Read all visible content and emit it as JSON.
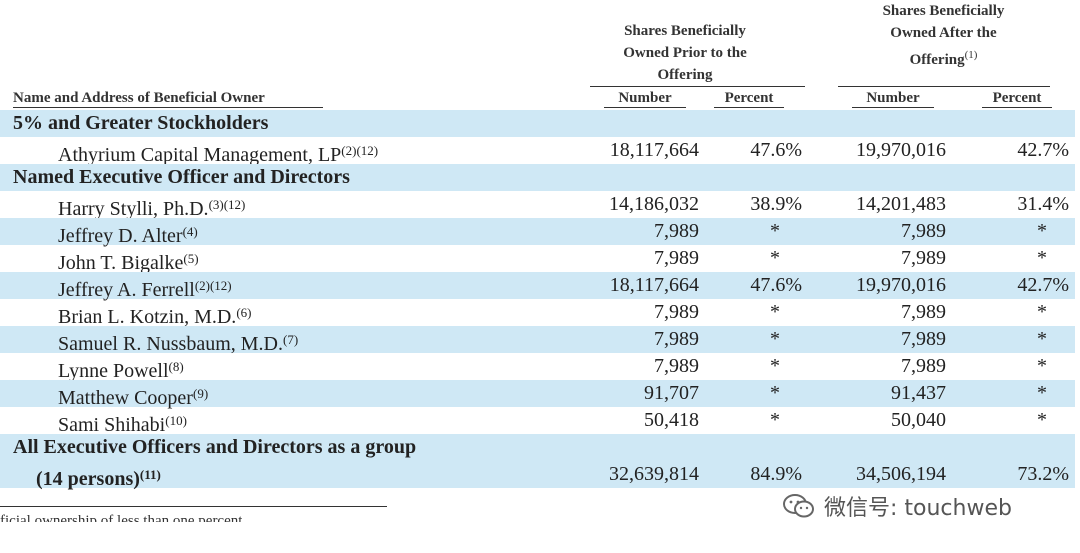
{
  "header": {
    "prior_title": "Shares Beneficially Owned Prior to the Offering",
    "after_title": "Shares Beneficially Owned After the Offering",
    "after_note": "(1)",
    "owner_col": "Name and Address of Beneficial Owner",
    "number": "Number",
    "percent": "Percent"
  },
  "rows": [
    {
      "type": "section",
      "name": "5% and Greater Stockholders",
      "shade": true
    },
    {
      "type": "data",
      "name": "Athyrium Capital Management, LP",
      "notes": "(2)(12)",
      "n1": "18,117,664",
      "p1": "47.6%",
      "n2": "19,970,016",
      "p2": "42.7%",
      "shade": false
    },
    {
      "type": "section",
      "name": "Named Executive Officer and Directors",
      "shade": true
    },
    {
      "type": "data",
      "name": "Harry Stylli, Ph.D.",
      "notes": "(3)(12)",
      "n1": "14,186,032",
      "p1": "38.9%",
      "n2": "14,201,483",
      "p2": "31.4%",
      "shade": false
    },
    {
      "type": "data",
      "name": "Jeffrey D. Alter",
      "notes": "(4)",
      "n1": "7,989",
      "p1": "*",
      "n2": "7,989",
      "p2": "*",
      "shade": true
    },
    {
      "type": "data",
      "name": "John T. Bigalke",
      "notes": "(5)",
      "n1": "7,989",
      "p1": "*",
      "n2": "7,989",
      "p2": "*",
      "shade": false
    },
    {
      "type": "data",
      "name": "Jeffrey A. Ferrell",
      "notes": "(2)(12)",
      "n1": "18,117,664",
      "p1": "47.6%",
      "n2": "19,970,016",
      "p2": "42.7%",
      "shade": true
    },
    {
      "type": "data",
      "name": "Brian L. Kotzin, M.D.",
      "notes": "(6)",
      "n1": "7,989",
      "p1": "*",
      "n2": "7,989",
      "p2": "*",
      "shade": false
    },
    {
      "type": "data",
      "name": "Samuel R. Nussbaum, M.D.",
      "notes": "(7)",
      "n1": "7,989",
      "p1": "*",
      "n2": "7,989",
      "p2": "*",
      "shade": true
    },
    {
      "type": "data",
      "name": "Lynne Powell",
      "notes": "(8)",
      "n1": "7,989",
      "p1": "*",
      "n2": "7,989",
      "p2": "*",
      "shade": false
    },
    {
      "type": "data",
      "name": "Matthew Cooper",
      "notes": "(9)",
      "n1": "91,707",
      "p1": "*",
      "n2": "91,437",
      "p2": "*",
      "shade": true
    },
    {
      "type": "data",
      "name": "Sami Shihabi",
      "notes": "(10)",
      "n1": "50,418",
      "p1": "*",
      "n2": "50,040",
      "p2": "*",
      "shade": false
    }
  ],
  "total": {
    "line1": "All Executive Officers and Directors as a group",
    "line2": "(14 persons)",
    "notes": "(11)",
    "n1": "32,639,814",
    "p1": "84.9%",
    "n2": "34,506,194",
    "p2": "73.2%"
  },
  "footnote": "ficial ownership of less than one percent",
  "watermark": "微信号: touchweb",
  "colors": {
    "shade": "#cfe8f5",
    "text": "#222222"
  }
}
